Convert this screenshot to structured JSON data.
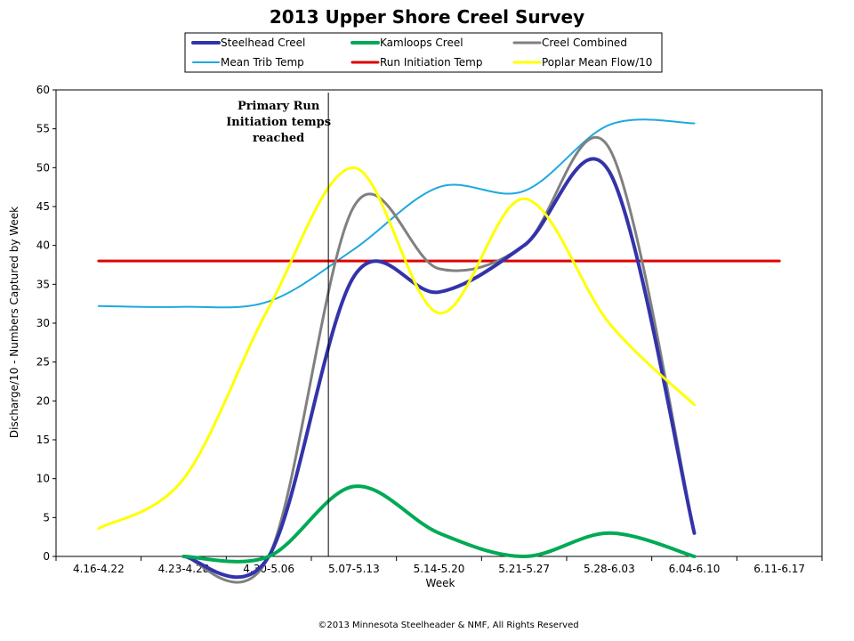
{
  "chart_data": {
    "type": "line",
    "title": "2013 Upper Shore Creel Survey",
    "xlabel": "Week",
    "ylabel": "Discharge/10 - Numbers Captured by Week",
    "ylim": [
      0,
      60
    ],
    "ytick_step": 5,
    "categories": [
      "4.16-4.22",
      "4.23-4.28",
      "4.30-5.06",
      "5.07-5.13",
      "5.14-5.20",
      "5.21-5.27",
      "5.28-6.03",
      "6.04-6.10",
      "6.11-6.17"
    ],
    "grid": false,
    "legend_position": "top",
    "series": [
      {
        "name": "Steelhead Creel",
        "color": "#3333aa",
        "width": 4,
        "x": [
          1,
          2,
          3,
          4,
          5,
          6,
          7
        ],
        "values": [
          0,
          0,
          36,
          34,
          40,
          49.5,
          3
        ]
      },
      {
        "name": "Kamloops Creel",
        "color": "#00aa55",
        "width": 4,
        "x": [
          1,
          2,
          3,
          4,
          5,
          6,
          7
        ],
        "values": [
          0,
          0,
          9,
          3,
          0,
          3,
          0
        ]
      },
      {
        "name": "Creel Combined",
        "color": "#808080",
        "width": 3,
        "x": [
          1,
          2,
          3,
          4,
          5,
          6,
          7
        ],
        "values": [
          0,
          0,
          45,
          37,
          40,
          52.5,
          3
        ]
      },
      {
        "name": "Mean Trib Temp",
        "color": "#1ea8e0",
        "width": 2,
        "x": [
          0,
          1,
          2,
          3,
          4,
          5,
          6,
          7
        ],
        "values": [
          32.2,
          32.1,
          32.8,
          39.5,
          47.5,
          47,
          55.5,
          55.7
        ]
      },
      {
        "name": "Run Initiation Temp",
        "color": "#dd0000",
        "width": 3,
        "x": [
          0,
          8
        ],
        "values": [
          38,
          38
        ]
      },
      {
        "name": "Poplar Mean Flow/10",
        "color": "#ffff00",
        "width": 3,
        "x": [
          0,
          1,
          2,
          3,
          4,
          5,
          6,
          7
        ],
        "values": [
          3.6,
          10,
          32,
          50,
          31.3,
          46,
          30,
          19.5
        ]
      }
    ],
    "annotation": {
      "lines": [
        "Primary Run",
        "Initiation temps",
        "reached"
      ],
      "x": 2.7
    }
  },
  "footer": "©2013 Minnesota Steelheader  & NMF, All Rights Reserved"
}
